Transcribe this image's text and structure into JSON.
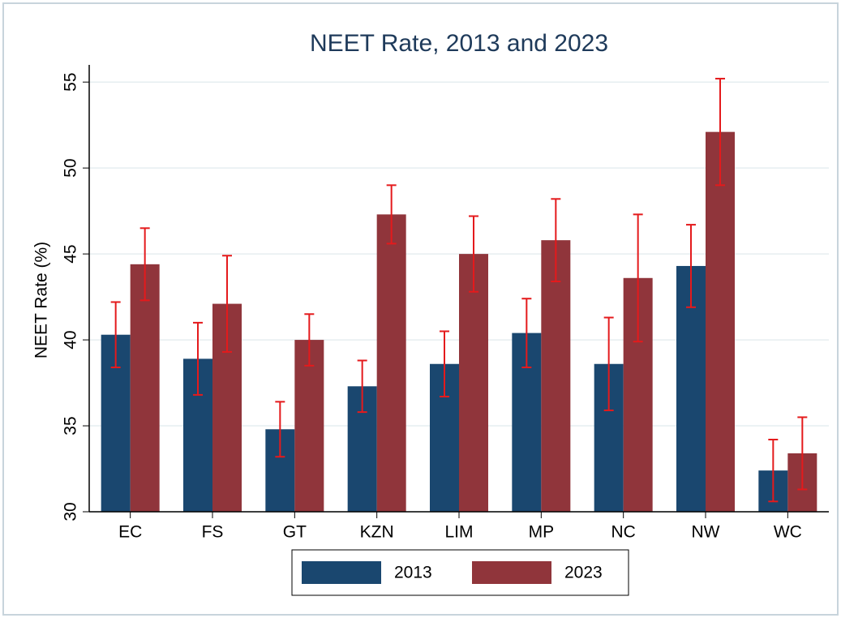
{
  "chart_data": {
    "type": "bar",
    "title": "NEET Rate, 2013 and 2023",
    "y_label": "NEET Rate (%)",
    "categories": [
      "EC",
      "FS",
      "GT",
      "KZN",
      "LIM",
      "MP",
      "NC",
      "NW",
      "WC"
    ],
    "series": [
      {
        "name": "2013",
        "color": "#1a476f",
        "values": [
          40.3,
          38.9,
          34.8,
          37.3,
          38.6,
          40.4,
          38.6,
          44.3,
          32.4
        ],
        "errors": [
          1.9,
          2.1,
          1.6,
          1.5,
          1.9,
          2.0,
          2.7,
          2.4,
          1.8
        ]
      },
      {
        "name": "2023",
        "color": "#90353b",
        "values": [
          44.4,
          42.1,
          40.0,
          47.3,
          45.0,
          45.8,
          43.6,
          52.1,
          33.4
        ],
        "errors": [
          2.1,
          2.8,
          1.5,
          1.7,
          2.2,
          2.4,
          3.7,
          3.1,
          2.1
        ]
      }
    ],
    "error_color": "#e41a1c",
    "ylim": [
      30,
      56
    ],
    "yticks": [
      30,
      35,
      40,
      45,
      50,
      55
    ],
    "grid": true,
    "legend": "bottom"
  }
}
